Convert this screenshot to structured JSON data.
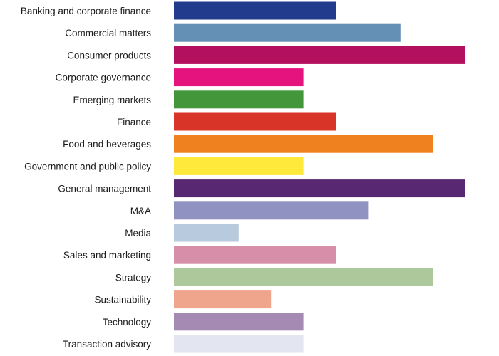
{
  "chart_data": {
    "type": "bar",
    "orientation": "horizontal",
    "title": "",
    "xlabel": "",
    "ylabel": "",
    "xlim": [
      0,
      9
    ],
    "grid": false,
    "categories": [
      "Banking and corporate finance",
      "Commercial matters",
      "Consumer products",
      "Corporate governance",
      "Emerging markets",
      "Finance",
      "Food and beverages",
      "Government and public policy",
      "General management",
      "M&A",
      "Media",
      "Sales and marketing",
      "Strategy",
      "Sustainability",
      "Technology",
      "Transaction advisory"
    ],
    "values": [
      5,
      7,
      9,
      4,
      4,
      5,
      8,
      4,
      9,
      6,
      2,
      5,
      8,
      3,
      4,
      4
    ],
    "colors": [
      "#233b8c",
      "#6590b5",
      "#b3115f",
      "#e5137e",
      "#43963a",
      "#d83427",
      "#ef811e",
      "#ffe93b",
      "#592873",
      "#9092c2",
      "#b8cade",
      "#d78fa9",
      "#adc89a",
      "#efa48c",
      "#a58ab3",
      "#e3e6f0"
    ]
  }
}
